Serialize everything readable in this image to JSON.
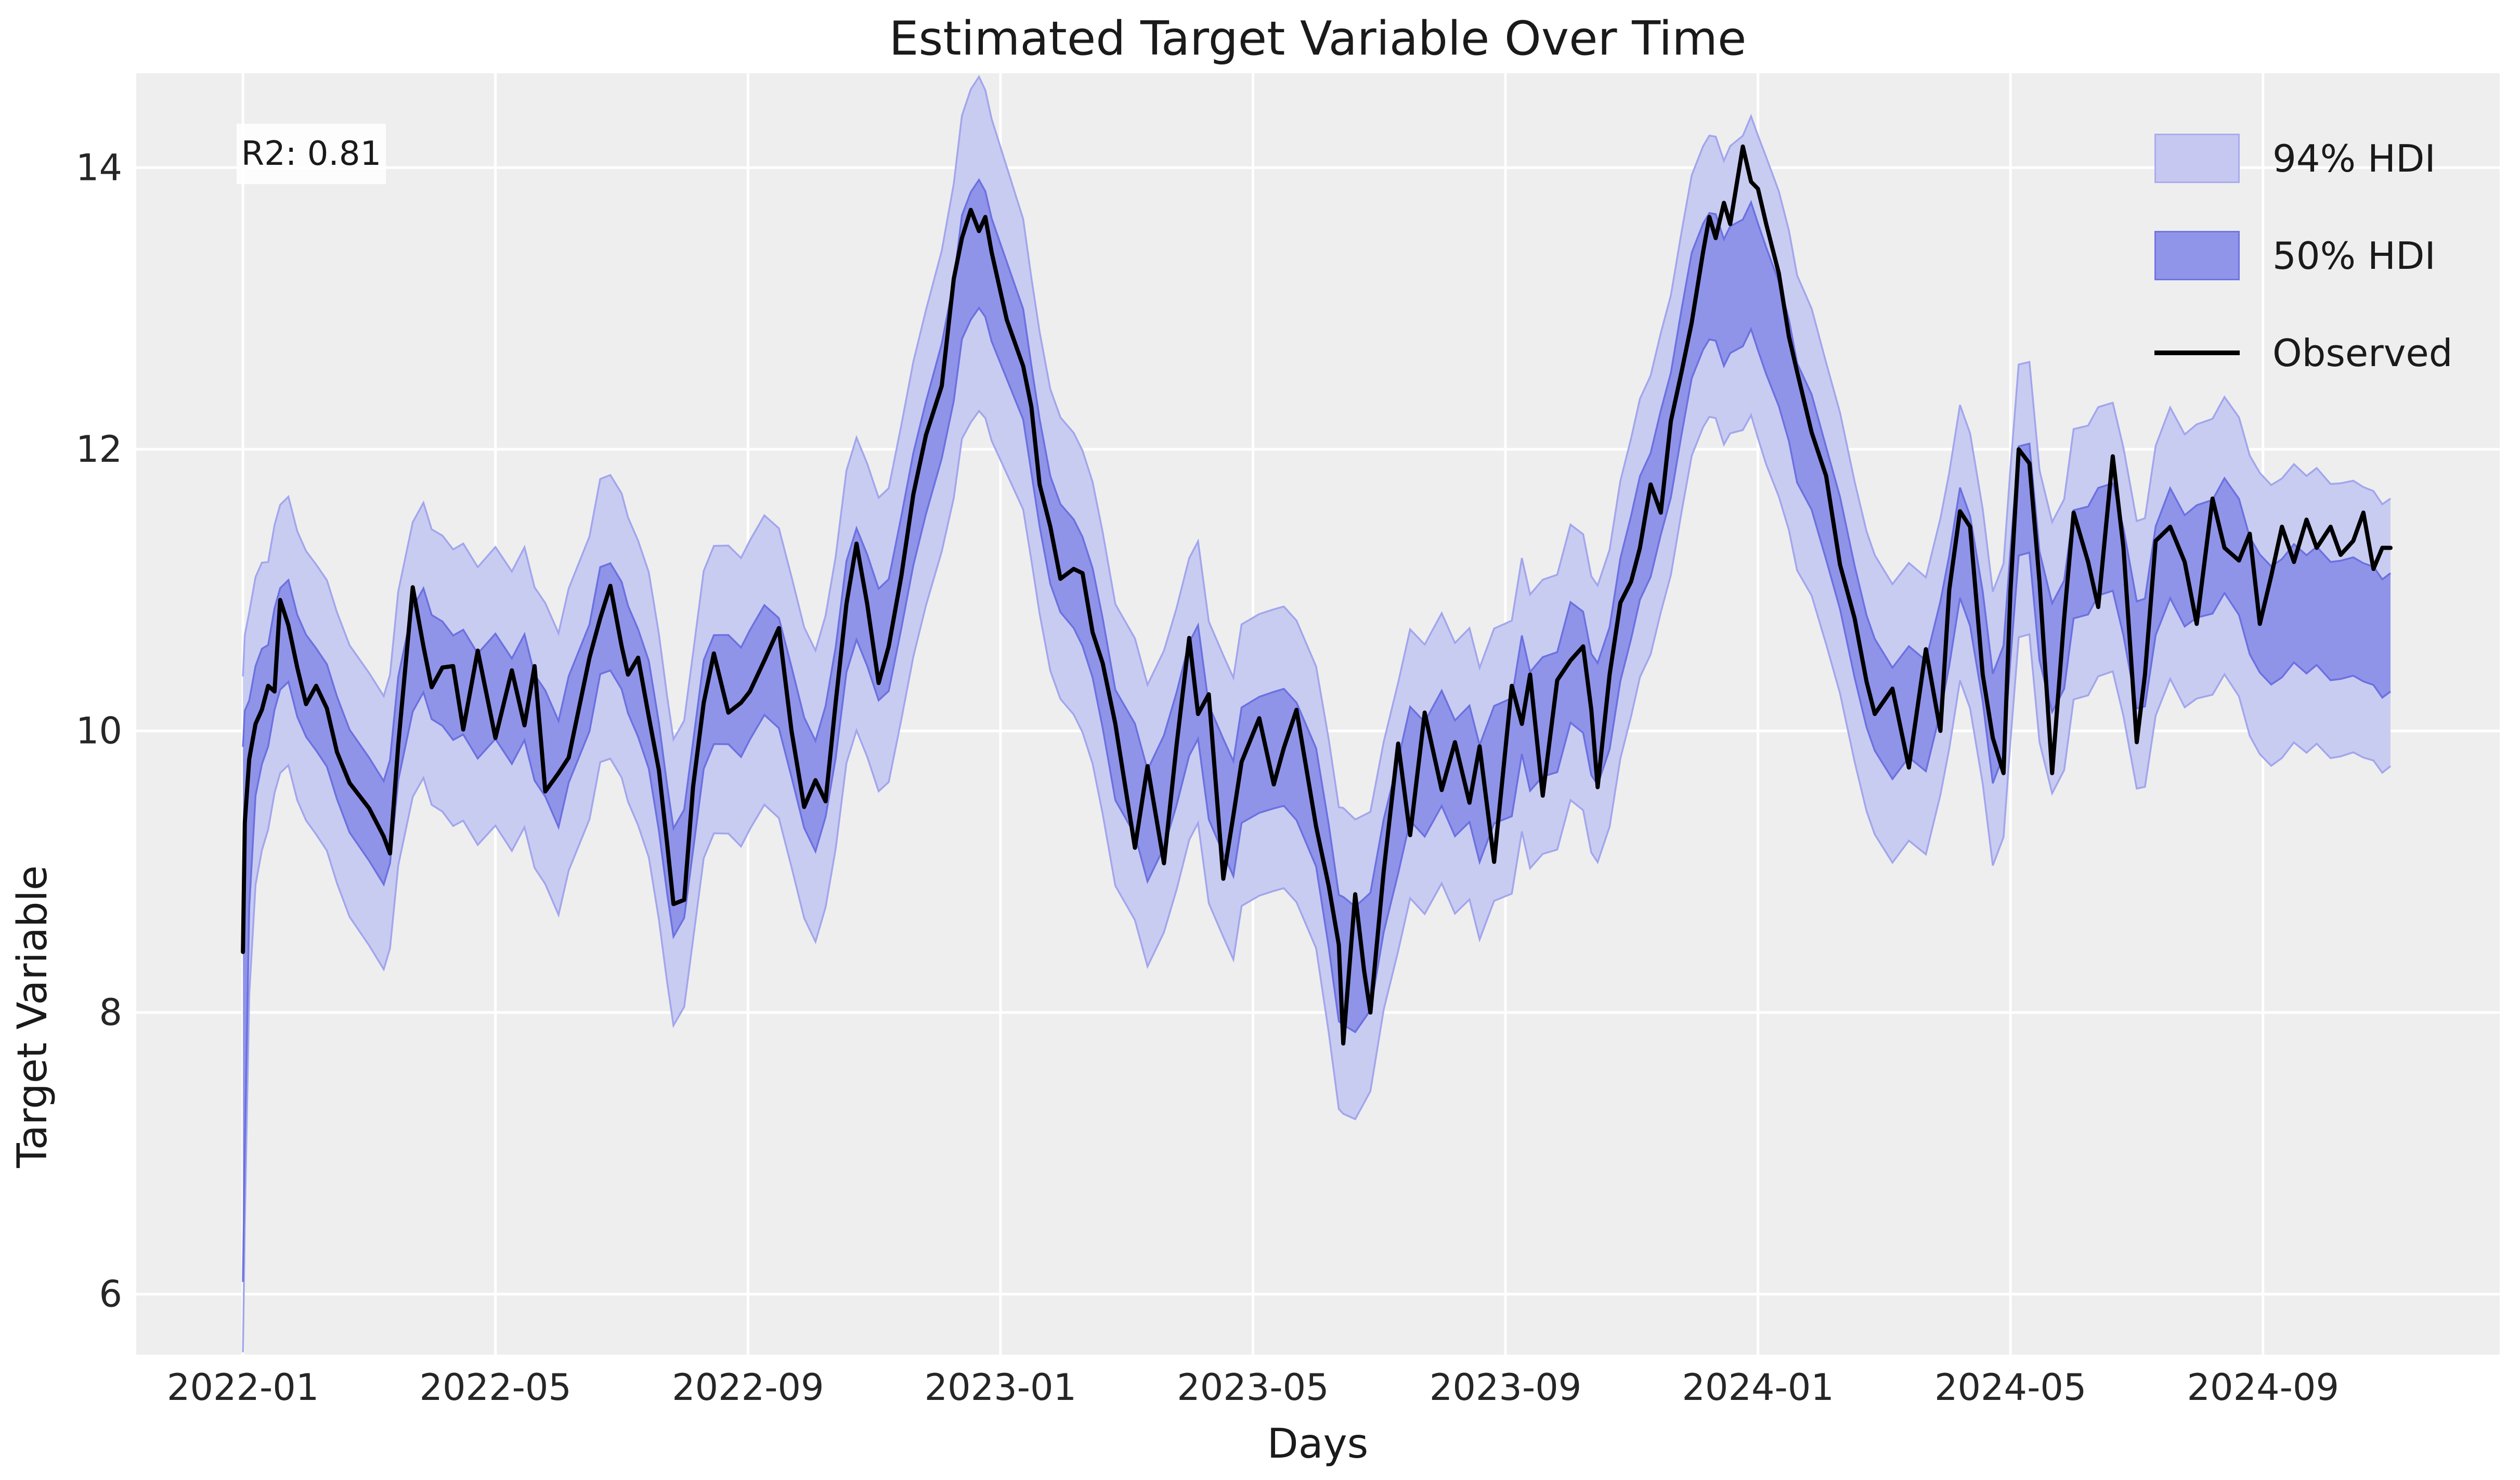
{
  "title": "Estimated Target Variable Over Time",
  "annotation": {
    "text": "R2: 0.81"
  },
  "legend": {
    "items": [
      {
        "label": "94% HDI",
        "type": "patch",
        "fill": "#c6c8f1",
        "edge": "#a9adee"
      },
      {
        "label": "50% HDI",
        "type": "patch",
        "fill": "#9195ea",
        "edge": "#6f75e1"
      },
      {
        "label": "Observed",
        "type": "line",
        "color": "#000000"
      }
    ]
  },
  "chart_data": {
    "type": "line",
    "title": "Estimated Target Variable Over Time",
    "xlabel": "Days",
    "ylabel": "Target Variable",
    "annotation": "R2: 0.81",
    "x_unit": "months since 2022-01-01 (data span 2022-01-01 to 2024-11-01)",
    "xlim": [
      -1.69,
      35.75
    ],
    "ylim": [
      5.57,
      14.67
    ],
    "grid": true,
    "legend_position": "upper right",
    "x_ticks": [
      {
        "pos": 0,
        "label": "2022-01"
      },
      {
        "pos": 4,
        "label": "2022-05"
      },
      {
        "pos": 8,
        "label": "2022-09"
      },
      {
        "pos": 12,
        "label": "2023-01"
      },
      {
        "pos": 16,
        "label": "2023-05"
      },
      {
        "pos": 20,
        "label": "2023-09"
      },
      {
        "pos": 24,
        "label": "2024-01"
      },
      {
        "pos": 28,
        "label": "2024-05"
      },
      {
        "pos": 32,
        "label": "2024-09"
      }
    ],
    "y_ticks": [
      6,
      8,
      10,
      12,
      14
    ],
    "colors": {
      "figure_bg": "#ffffff",
      "axes_bg": "#eeeeee",
      "grid": "#ffffff",
      "hdi94_fill": "#c9ccf1",
      "hdi94_edge": "#a2a6ec",
      "hdi50_fill": "#8f94e9",
      "hdi50_edge": "#6b71e0",
      "observed": "#000000",
      "text": "#262626"
    },
    "series_observed": {
      "name": "Observed",
      "x": [
        0,
        0.03,
        0.1,
        0.2,
        0.3,
        0.4,
        0.5,
        0.59,
        0.72,
        0.86,
        1.0,
        1.16,
        1.33,
        1.49,
        1.69,
        2.0,
        2.23,
        2.33,
        2.46,
        2.69,
        2.86,
        2.99,
        3.16,
        3.33,
        3.49,
        3.72,
        4.0,
        4.26,
        4.46,
        4.62,
        4.79,
        5.0,
        5.16,
        5.49,
        5.66,
        5.82,
        6.0,
        6.1,
        6.26,
        6.43,
        6.59,
        6.72,
        6.82,
        6.99,
        7.13,
        7.3,
        7.46,
        7.69,
        7.89,
        8.03,
        8.26,
        8.49,
        8.69,
        8.89,
        9.07,
        9.23,
        9.39,
        9.56,
        9.72,
        9.89,
        10.07,
        10.23,
        10.43,
        10.62,
        10.82,
        11.07,
        11.26,
        11.39,
        11.53,
        11.66,
        11.76,
        11.86,
        12.1,
        12.36,
        12.49,
        12.62,
        12.79,
        12.95,
        13.16,
        13.3,
        13.46,
        13.62,
        13.82,
        14.13,
        14.33,
        14.59,
        14.79,
        14.99,
        15.13,
        15.3,
        15.53,
        15.69,
        15.82,
        16.1,
        16.33,
        16.49,
        16.69,
        17.0,
        17.2,
        17.36,
        17.43,
        17.62,
        17.76,
        17.86,
        18.07,
        18.3,
        18.49,
        18.72,
        18.99,
        19.2,
        19.43,
        19.59,
        19.82,
        20.1,
        20.26,
        20.39,
        20.59,
        20.82,
        21.03,
        21.23,
        21.36,
        21.46,
        21.65,
        21.82,
        21.99,
        22.13,
        22.3,
        22.46,
        22.62,
        22.79,
        22.95,
        23.13,
        23.23,
        23.33,
        23.46,
        23.56,
        23.76,
        23.89,
        24.0,
        24.13,
        24.33,
        24.49,
        24.62,
        24.85,
        25.08,
        25.3,
        25.53,
        25.72,
        25.85,
        26.13,
        26.39,
        26.66,
        26.89,
        27.03,
        27.2,
        27.36,
        27.56,
        27.72,
        27.89,
        28.0,
        28.13,
        28.3,
        28.46,
        28.66,
        28.85,
        29.0,
        29.23,
        29.39,
        29.62,
        29.79,
        30.0,
        30.13,
        30.3,
        30.53,
        30.76,
        30.95,
        31.2,
        31.39,
        31.62,
        31.79,
        31.95,
        32.13,
        32.3,
        32.49,
        32.69,
        32.85,
        33.07,
        33.23,
        33.43,
        33.59,
        33.75,
        33.89,
        34.02
      ],
      "y": [
        8.43,
        9.35,
        9.8,
        10.05,
        10.15,
        10.32,
        10.28,
        10.93,
        10.75,
        10.45,
        10.19,
        10.32,
        10.16,
        9.85,
        9.63,
        9.45,
        9.25,
        9.13,
        9.9,
        11.02,
        10.6,
        10.31,
        10.45,
        10.46,
        10.01,
        10.57,
        9.95,
        10.43,
        10.04,
        10.46,
        9.57,
        9.7,
        9.81,
        10.52,
        10.8,
        11.03,
        10.6,
        10.4,
        10.52,
        10.1,
        9.72,
        9.2,
        8.77,
        8.8,
        9.6,
        10.2,
        10.55,
        10.13,
        10.2,
        10.28,
        10.5,
        10.73,
        10.0,
        9.46,
        9.65,
        9.5,
        10.2,
        10.9,
        11.33,
        10.9,
        10.34,
        10.6,
        11.1,
        11.68,
        12.1,
        12.45,
        13.21,
        13.5,
        13.7,
        13.55,
        13.65,
        13.4,
        12.92,
        12.59,
        12.3,
        11.75,
        11.45,
        11.08,
        11.15,
        11.12,
        10.7,
        10.48,
        10.05,
        9.17,
        9.75,
        9.06,
        9.9,
        10.66,
        10.12,
        10.26,
        8.95,
        9.4,
        9.78,
        10.09,
        9.62,
        9.88,
        10.15,
        9.32,
        8.9,
        8.48,
        7.78,
        8.84,
        8.3,
        8.0,
        9.0,
        9.91,
        9.26,
        10.13,
        9.58,
        9.92,
        9.49,
        9.89,
        9.07,
        10.32,
        10.05,
        10.4,
        9.54,
        10.36,
        10.5,
        10.6,
        10.15,
        9.6,
        10.4,
        10.91,
        11.06,
        11.3,
        11.75,
        11.55,
        12.2,
        12.55,
        12.9,
        13.4,
        13.65,
        13.5,
        13.75,
        13.6,
        14.15,
        13.9,
        13.85,
        13.6,
        13.25,
        12.8,
        12.55,
        12.12,
        11.81,
        11.18,
        10.8,
        10.35,
        10.12,
        10.3,
        9.74,
        10.58,
        10.0,
        11.0,
        11.56,
        11.45,
        10.4,
        9.95,
        9.7,
        11.0,
        12.0,
        11.9,
        11.06,
        9.7,
        10.8,
        11.55,
        11.2,
        10.88,
        11.95,
        11.3,
        9.92,
        10.4,
        11.35,
        11.45,
        11.2,
        10.76,
        11.65,
        11.3,
        11.21,
        11.4,
        10.76,
        11.1,
        11.45,
        11.2,
        11.5,
        11.3,
        11.45,
        11.25,
        11.35,
        11.55,
        11.15,
        11.3,
        11.3
      ]
    },
    "hdi_bands": {
      "note": "bands centered on 3-point smoothed observed plus center_adjust; half-widths linearly interpolated",
      "center_adjust": [
        [
          0,
          -0.75
        ],
        [
          0.15,
          0
        ],
        [
          10.5,
          0
        ],
        [
          11.2,
          -0.3
        ],
        [
          12.3,
          0
        ],
        [
          23.0,
          0
        ],
        [
          23.6,
          -0.75
        ],
        [
          24.1,
          -0.6
        ],
        [
          24.8,
          -0.2
        ],
        [
          25.3,
          0
        ],
        [
          31.5,
          0
        ],
        [
          32.3,
          -0.45
        ],
        [
          33.0,
          -0.55
        ],
        [
          34.02,
          -0.6
        ]
      ],
      "hdi50_halfwidth": [
        [
          0,
          1.9
        ],
        [
          0.12,
          0.5
        ],
        [
          0.4,
          0.36
        ],
        [
          11.0,
          0.4
        ],
        [
          11.6,
          0.46
        ],
        [
          12.5,
          0.38
        ],
        [
          17.0,
          0.42
        ],
        [
          17.5,
          0.46
        ],
        [
          18.0,
          0.4
        ],
        [
          23.4,
          0.45
        ],
        [
          24.2,
          0.45
        ],
        [
          25.0,
          0.4
        ],
        [
          30.0,
          0.38
        ],
        [
          32.0,
          0.42
        ],
        [
          34.02,
          0.42
        ]
      ],
      "hdi94_halfwidth": [
        [
          0,
          2.4
        ],
        [
          0.12,
          1.15
        ],
        [
          0.4,
          0.95
        ],
        [
          5.0,
          1.0
        ],
        [
          11.0,
          1.05
        ],
        [
          11.6,
          1.2
        ],
        [
          12.5,
          1.0
        ],
        [
          17.0,
          1.0
        ],
        [
          17.5,
          1.1
        ],
        [
          18.0,
          0.95
        ],
        [
          23.4,
          1.0
        ],
        [
          24.2,
          1.1
        ],
        [
          25.0,
          1.0
        ],
        [
          30.0,
          0.95
        ],
        [
          32.0,
          1.0
        ],
        [
          34.02,
          0.95
        ]
      ]
    }
  }
}
